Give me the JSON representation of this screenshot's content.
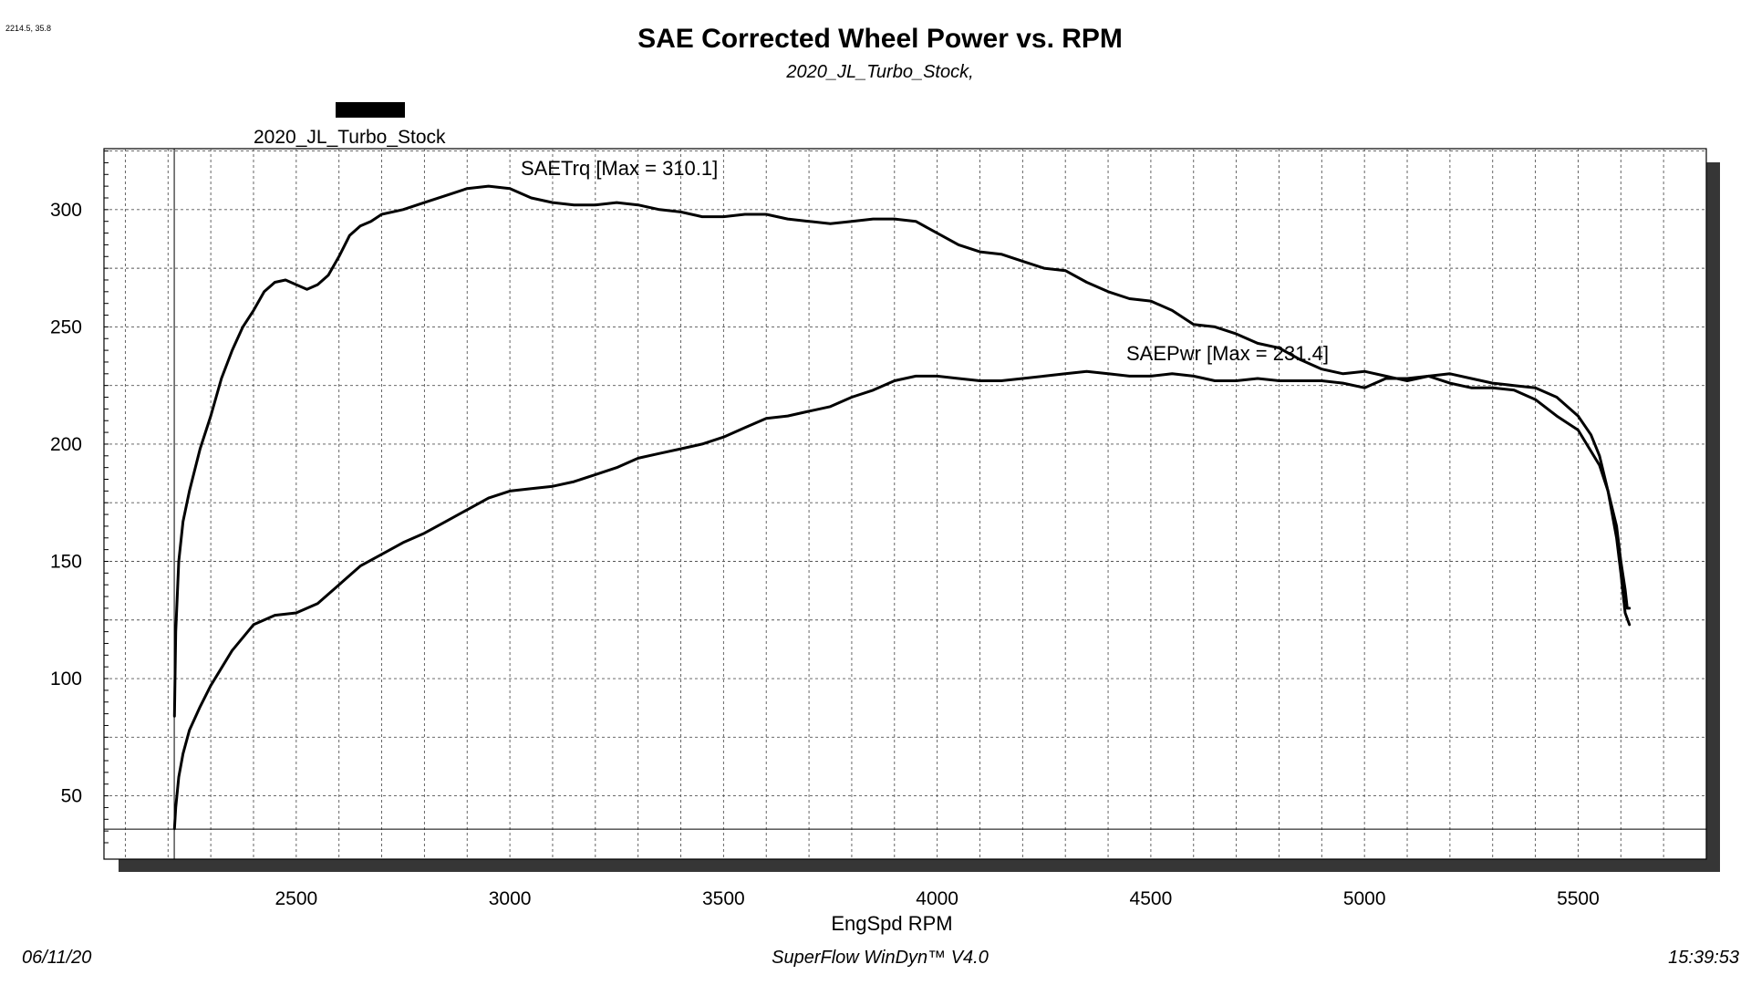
{
  "coord_readout": "2214.5, 35.8",
  "footer": {
    "date": "06/11/20",
    "software": "SuperFlow WinDyn™  V4.0",
    "time": "15:39:53"
  },
  "chart_data": {
    "type": "line",
    "title": "SAE Corrected Wheel Power vs. RPM",
    "subtitle": "2020_JL_Turbo_Stock,",
    "xlabel": "EngSpd RPM",
    "ylabel": "",
    "xlim": [
      2050,
      5800
    ],
    "ylim": [
      23,
      326
    ],
    "xticks": [
      2500,
      3000,
      3500,
      4000,
      4500,
      5000,
      5500
    ],
    "yticks": [
      50,
      100,
      150,
      200,
      250,
      300
    ],
    "grid": true,
    "cursor_x": 2214.5,
    "cursor_y": 35.8,
    "legend": {
      "position": "top-left",
      "entries": [
        {
          "name": "2020_JL_Turbo_Stock",
          "color": "#000000"
        }
      ]
    },
    "annotations": [
      "SAETrq [Max = 310.1]",
      "SAEPwr [Max = 231.4]"
    ],
    "series": [
      {
        "name": "SAETrq",
        "color": "#000000",
        "x": [
          2215,
          2218,
          2225,
          2235,
          2250,
          2275,
          2300,
          2325,
          2350,
          2375,
          2400,
          2425,
          2450,
          2475,
          2500,
          2525,
          2550,
          2575,
          2600,
          2625,
          2650,
          2675,
          2700,
          2750,
          2800,
          2850,
          2900,
          2950,
          3000,
          3050,
          3100,
          3150,
          3200,
          3250,
          3300,
          3350,
          3400,
          3450,
          3500,
          3550,
          3600,
          3650,
          3700,
          3750,
          3800,
          3850,
          3900,
          3950,
          4000,
          4050,
          4100,
          4150,
          4200,
          4250,
          4300,
          4350,
          4400,
          4450,
          4500,
          4550,
          4600,
          4650,
          4700,
          4750,
          4800,
          4850,
          4900,
          4950,
          5000,
          5050,
          5100,
          5150,
          5200,
          5250,
          5300,
          5350,
          5400,
          5450,
          5500,
          5550,
          5570,
          5590,
          5600,
          5610,
          5615,
          5620
        ],
        "y": [
          84,
          120,
          150,
          167,
          180,
          198,
          212,
          228,
          240,
          250,
          257,
          265,
          269,
          270,
          268,
          266,
          268,
          272,
          280,
          289,
          293,
          295,
          298,
          300,
          303,
          306,
          309,
          310,
          309,
          305,
          303,
          302,
          302,
          303,
          302,
          300,
          299,
          297,
          297,
          298,
          298,
          296,
          295,
          294,
          295,
          296,
          296,
          295,
          290,
          285,
          282,
          281,
          278,
          275,
          274,
          269,
          265,
          262,
          261,
          257,
          251,
          250,
          247,
          243,
          241,
          236,
          232,
          230,
          231,
          229,
          227,
          229,
          226,
          224,
          224,
          223,
          219,
          212,
          206,
          191,
          180,
          165,
          150,
          138,
          130,
          130
        ]
      },
      {
        "name": "SAEPwr",
        "color": "#000000",
        "x": [
          2215,
          2218,
          2225,
          2235,
          2250,
          2275,
          2300,
          2350,
          2400,
          2450,
          2500,
          2550,
          2600,
          2650,
          2700,
          2750,
          2800,
          2850,
          2900,
          2950,
          3000,
          3050,
          3100,
          3150,
          3200,
          3250,
          3300,
          3350,
          3400,
          3450,
          3500,
          3550,
          3600,
          3650,
          3700,
          3750,
          3800,
          3850,
          3900,
          3950,
          4000,
          4050,
          4100,
          4150,
          4200,
          4250,
          4300,
          4350,
          4400,
          4450,
          4500,
          4550,
          4600,
          4650,
          4700,
          4750,
          4800,
          4850,
          4900,
          4950,
          5000,
          5050,
          5100,
          5150,
          5200,
          5250,
          5300,
          5350,
          5400,
          5450,
          5500,
          5530,
          5550,
          5570,
          5590,
          5600,
          5610,
          5620
        ],
        "y": [
          36,
          45,
          58,
          68,
          78,
          88,
          97,
          112,
          123,
          127,
          128,
          132,
          140,
          148,
          153,
          158,
          162,
          167,
          172,
          177,
          180,
          181,
          182,
          184,
          187,
          190,
          194,
          196,
          198,
          200,
          203,
          207,
          211,
          212,
          214,
          216,
          220,
          223,
          227,
          229,
          229,
          228,
          227,
          227,
          228,
          229,
          230,
          231,
          230,
          229,
          229,
          230,
          229,
          227,
          227,
          228,
          227,
          227,
          227,
          226,
          224,
          228,
          228,
          229,
          230,
          228,
          226,
          225,
          224,
          220,
          212,
          204,
          195,
          180,
          160,
          145,
          128,
          123
        ]
      }
    ]
  }
}
